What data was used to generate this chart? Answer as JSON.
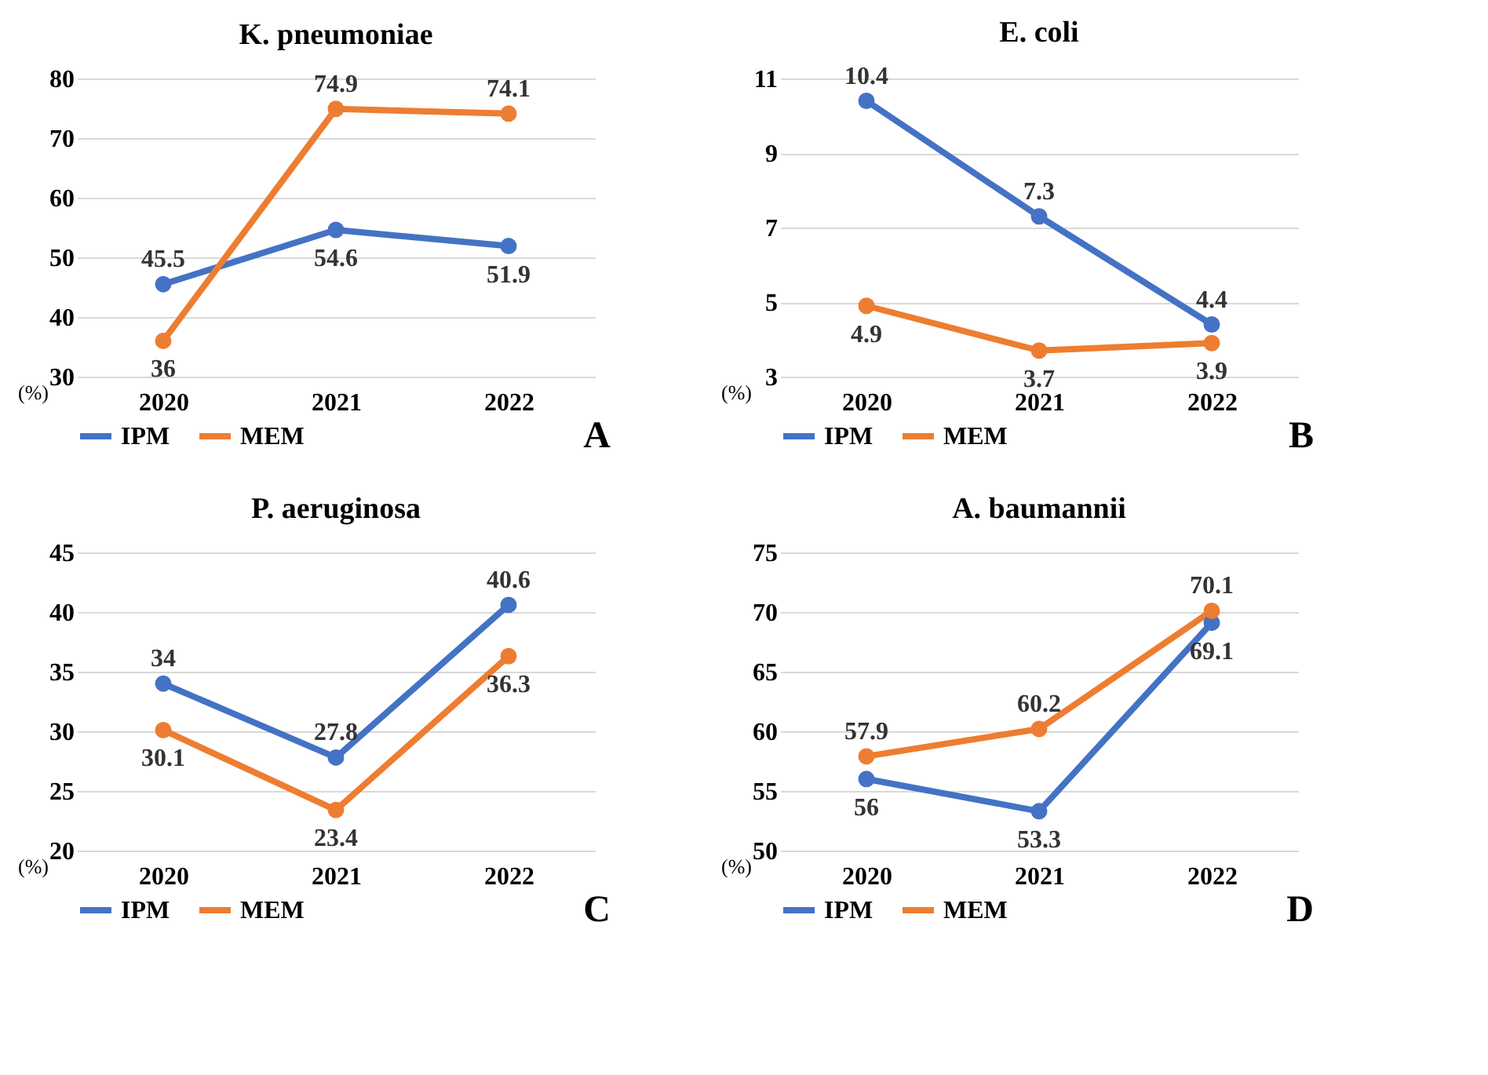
{
  "chart_data": [
    {
      "type": "line",
      "title": "K. pneumoniae",
      "ylabel": "(%)",
      "categories": [
        "2020",
        "2021",
        "2022"
      ],
      "series": [
        {
          "name": "IPM",
          "color": "#4472c4",
          "values": [
            45.5,
            54.6,
            51.9
          ]
        },
        {
          "name": "MEM",
          "color": "#ed7d31",
          "values": [
            36,
            74.9,
            74.1
          ]
        }
      ],
      "ylim": [
        30,
        80
      ],
      "yticks": [
        30,
        40,
        50,
        60,
        70,
        80
      ],
      "grid": "y",
      "legend": "bottom",
      "marker": "circle",
      "data_labels": true,
      "annotations": [
        "A"
      ]
    },
    {
      "type": "line",
      "title": "E. coli",
      "ylabel": "(%)",
      "categories": [
        "2020",
        "2021",
        "2022"
      ],
      "series": [
        {
          "name": "IPM",
          "color": "#4472c4",
          "values": [
            10.4,
            7.3,
            4.4
          ]
        },
        {
          "name": "MEM",
          "color": "#ed7d31",
          "values": [
            4.9,
            3.7,
            3.9
          ]
        }
      ],
      "ylim": [
        3,
        11
      ],
      "yticks": [
        3,
        5,
        7,
        9,
        11
      ],
      "grid": "y",
      "legend": "bottom",
      "marker": "circle",
      "data_labels": true,
      "annotations": [
        "B"
      ]
    },
    {
      "type": "line",
      "title": "P. aeruginosa",
      "ylabel": "(%)",
      "categories": [
        "2020",
        "2021",
        "2022"
      ],
      "series": [
        {
          "name": "IPM",
          "color": "#4472c4",
          "values": [
            34,
            27.8,
            40.6
          ]
        },
        {
          "name": "MEM",
          "color": "#ed7d31",
          "values": [
            30.1,
            23.4,
            36.3
          ]
        }
      ],
      "ylim": [
        20,
        45
      ],
      "yticks": [
        20,
        25,
        30,
        35,
        40,
        45
      ],
      "grid": "y",
      "legend": "bottom",
      "marker": "circle",
      "data_labels": true,
      "annotations": [
        "C"
      ]
    },
    {
      "type": "line",
      "title": "A. baumannii",
      "ylabel": "(%)",
      "categories": [
        "2020",
        "2021",
        "2022"
      ],
      "series": [
        {
          "name": "IPM",
          "color": "#4472c4",
          "values": [
            56,
            53.3,
            69.1
          ]
        },
        {
          "name": "MEM",
          "color": "#ed7d31",
          "values": [
            57.9,
            60.2,
            70.1
          ]
        }
      ],
      "ylim": [
        50,
        75
      ],
      "yticks": [
        50,
        55,
        60,
        65,
        70,
        75
      ],
      "grid": "y",
      "legend": "bottom",
      "marker": "circle",
      "data_labels": true,
      "annotations": [
        "D"
      ]
    }
  ]
}
